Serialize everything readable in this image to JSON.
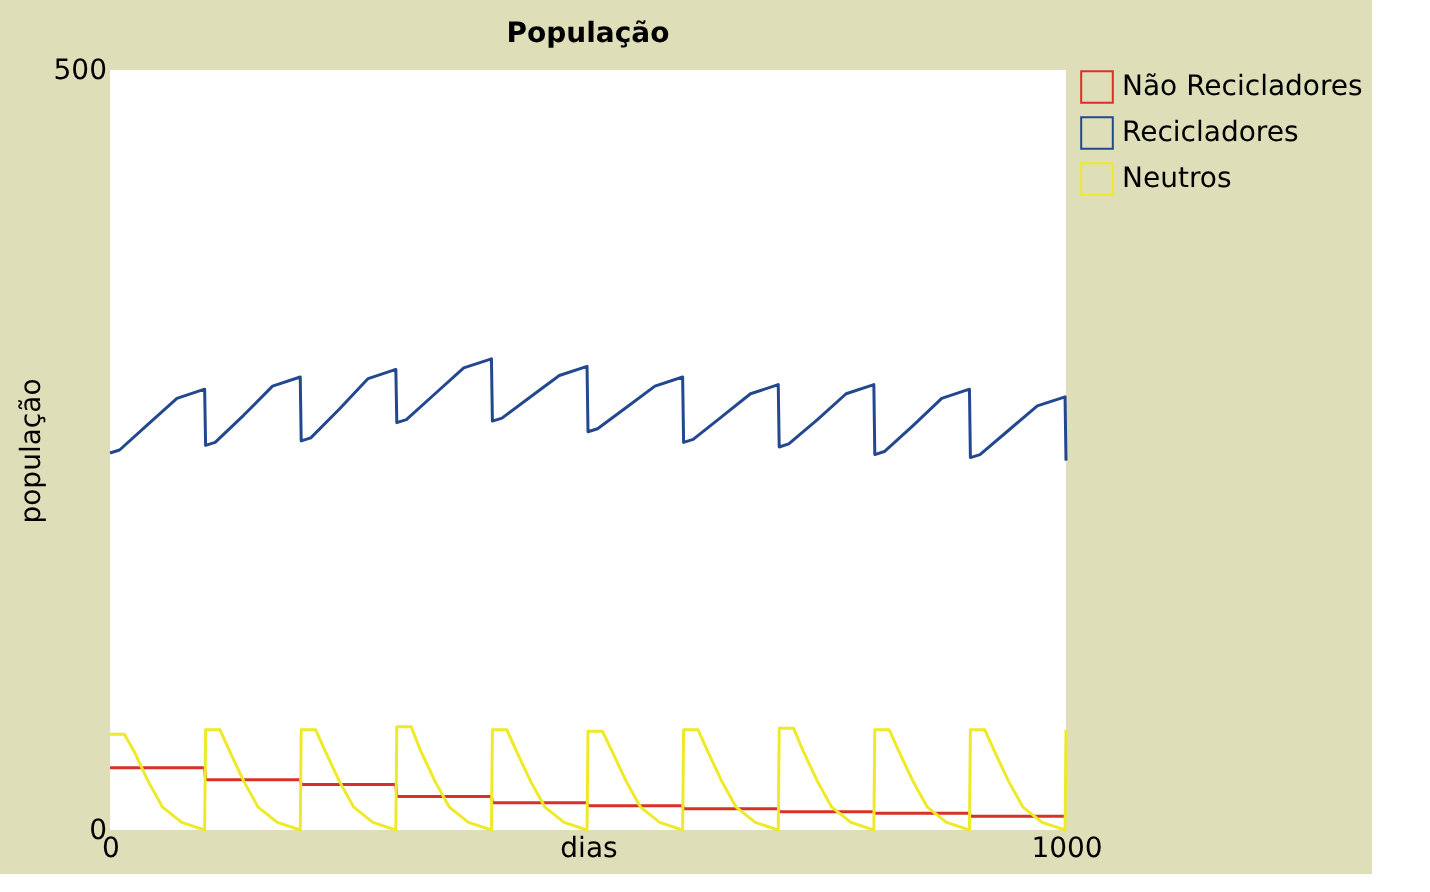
{
  "chart_data": {
    "type": "line",
    "title": "População",
    "xlabel": "dias",
    "ylabel": "população",
    "xlim": [
      0,
      1000
    ],
    "ylim": [
      0,
      500
    ],
    "xticks": [
      0,
      1000
    ],
    "yticks": [
      0,
      500
    ],
    "grid": false,
    "legend": "right",
    "series": [
      {
        "name": "Não Recicladores",
        "color": "#d73229",
        "x": [
          0,
          99,
          100,
          199,
          200,
          299,
          300,
          399,
          400,
          499,
          500,
          599,
          600,
          699,
          700,
          799,
          800,
          899,
          900,
          999,
          1000
        ],
        "values": [
          41,
          41,
          33,
          33,
          30,
          30,
          22,
          22,
          18,
          18,
          16,
          16,
          14,
          14,
          12,
          12,
          11,
          11,
          9,
          9,
          9
        ]
      },
      {
        "name": "Recicladores",
        "color": "#23488f",
        "x": [
          0,
          10,
          40,
          70,
          99,
          100,
          110,
          140,
          170,
          199,
          200,
          210,
          240,
          270,
          299,
          300,
          310,
          340,
          370,
          399,
          400,
          410,
          440,
          470,
          499,
          500,
          510,
          540,
          570,
          599,
          600,
          610,
          640,
          670,
          699,
          700,
          710,
          740,
          770,
          799,
          800,
          810,
          840,
          870,
          899,
          900,
          910,
          940,
          970,
          999,
          1000
        ],
        "values": [
          248,
          250,
          267,
          284,
          290,
          253,
          255,
          273,
          292,
          298,
          256,
          258,
          277,
          297,
          303,
          268,
          270,
          287,
          304,
          310,
          269,
          271,
          285,
          299,
          305,
          262,
          264,
          278,
          292,
          298,
          255,
          257,
          272,
          287,
          293,
          252,
          254,
          270,
          287,
          293,
          247,
          249,
          266,
          284,
          290,
          245,
          247,
          263,
          279,
          285,
          243
        ]
      },
      {
        "name": "Neutros",
        "color": "#eeea2a",
        "x": [
          0,
          15,
          25,
          40,
          55,
          75,
          99,
          100,
          115,
          125,
          140,
          155,
          175,
          199,
          200,
          215,
          225,
          240,
          255,
          275,
          299,
          300,
          315,
          325,
          340,
          355,
          375,
          399,
          400,
          415,
          425,
          440,
          455,
          475,
          499,
          500,
          515,
          525,
          540,
          555,
          575,
          599,
          600,
          615,
          625,
          640,
          655,
          675,
          699,
          700,
          715,
          725,
          740,
          755,
          775,
          799,
          800,
          815,
          825,
          840,
          855,
          875,
          899,
          900,
          915,
          925,
          940,
          955,
          975,
          999,
          1000
        ],
        "values": [
          63,
          63,
          52,
          32,
          15,
          5,
          0,
          66,
          66,
          52,
          32,
          15,
          5,
          0,
          66,
          66,
          52,
          32,
          15,
          5,
          0,
          68,
          68,
          52,
          32,
          15,
          5,
          0,
          66,
          66,
          52,
          32,
          15,
          5,
          0,
          65,
          65,
          52,
          32,
          15,
          5,
          0,
          66,
          66,
          52,
          32,
          15,
          5,
          0,
          67,
          67,
          52,
          32,
          15,
          5,
          0,
          66,
          66,
          52,
          32,
          15,
          5,
          0,
          66,
          66,
          52,
          32,
          15,
          5,
          0,
          66
        ]
      }
    ]
  }
}
